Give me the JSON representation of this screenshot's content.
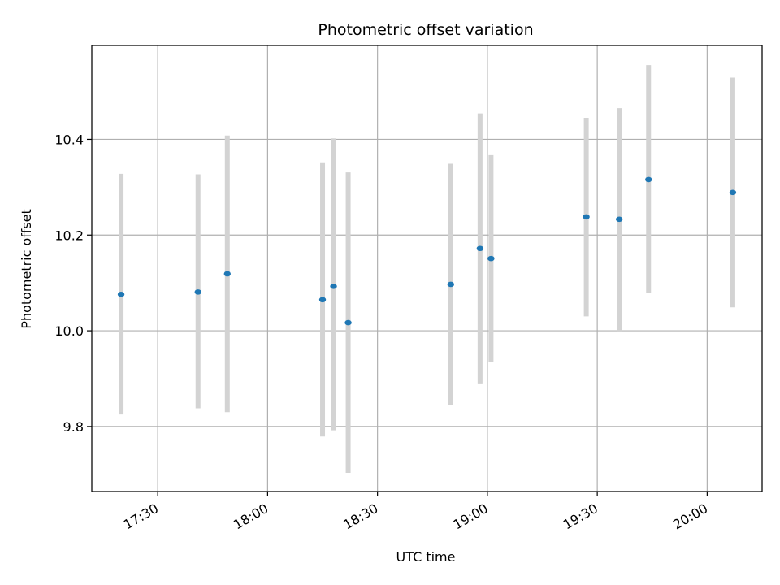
{
  "chart_data": {
    "type": "scatter",
    "title": "Photometric offset variation",
    "xlabel": "UTC time",
    "ylabel": "Photometric offset",
    "xlim": [
      "17:12",
      "20:15"
    ],
    "ylim": [
      9.664,
      10.596
    ],
    "grid": true,
    "x_ticks": [
      "17:30",
      "18:00",
      "18:30",
      "19:00",
      "19:30",
      "20:00"
    ],
    "y_ticks": [
      9.8,
      10.0,
      10.2,
      10.4
    ],
    "y_tick_labels": [
      "9.8",
      "10.0",
      "10.2",
      "10.4"
    ],
    "points": [
      {
        "time": "17:20",
        "y": 10.076,
        "lo": 9.825,
        "hi": 10.328
      },
      {
        "time": "17:41",
        "y": 10.081,
        "lo": 9.838,
        "hi": 10.327
      },
      {
        "time": "17:49",
        "y": 10.119,
        "lo": 9.83,
        "hi": 10.408
      },
      {
        "time": "18:15",
        "y": 10.065,
        "lo": 9.779,
        "hi": 10.352
      },
      {
        "time": "18:18",
        "y": 10.093,
        "lo": 9.792,
        "hi": 10.402
      },
      {
        "time": "18:22",
        "y": 10.017,
        "lo": 9.703,
        "hi": 10.331
      },
      {
        "time": "18:50",
        "y": 10.097,
        "lo": 9.844,
        "hi": 10.349
      },
      {
        "time": "18:58",
        "y": 10.172,
        "lo": 9.89,
        "hi": 10.454
      },
      {
        "time": "19:01",
        "y": 10.151,
        "lo": 9.935,
        "hi": 10.367
      },
      {
        "time": "19:27",
        "y": 10.238,
        "lo": 10.03,
        "hi": 10.445
      },
      {
        "time": "19:36",
        "y": 10.233,
        "lo": 10.0,
        "hi": 10.465
      },
      {
        "time": "19:44",
        "y": 10.316,
        "lo": 10.08,
        "hi": 10.555
      },
      {
        "time": "20:07",
        "y": 10.289,
        "lo": 10.049,
        "hi": 10.529
      }
    ],
    "colors": {
      "marker": "#1f77b4",
      "errorbar": "#d3d3d3",
      "grid": "#b0b0b0",
      "axis": "#000000"
    }
  }
}
